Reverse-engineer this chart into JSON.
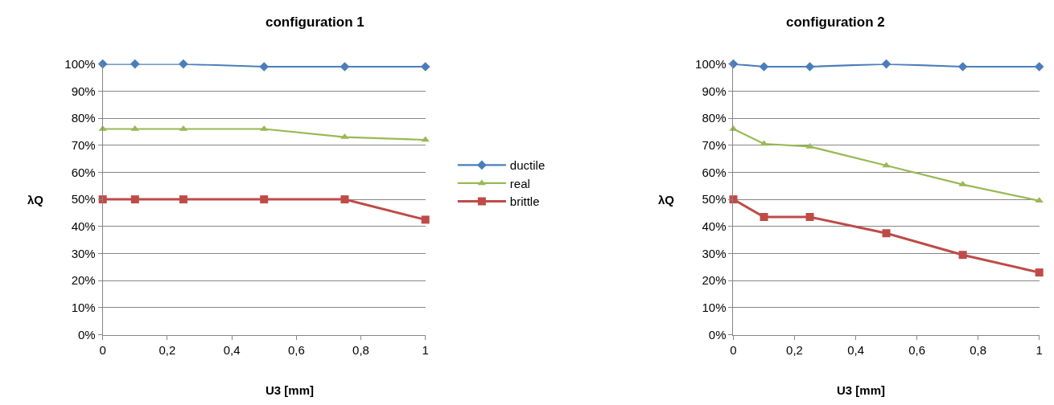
{
  "chart_data": [
    {
      "type": "line",
      "title": "configuration 1",
      "xlabel": "U3 [mm]",
      "ylabel": "λQ",
      "x": [
        0,
        0.1,
        0.25,
        0.5,
        0.75,
        1
      ],
      "series": [
        {
          "name": "ductile",
          "color": "#4a7ebb",
          "marker": "diamond",
          "values": [
            100,
            100,
            100,
            99,
            99,
            99
          ]
        },
        {
          "name": "real",
          "color": "#98b954",
          "marker": "triangle",
          "values": [
            76,
            76,
            76,
            76,
            73,
            72
          ]
        },
        {
          "name": "brittle",
          "color": "#be4b48",
          "marker": "square",
          "values": [
            50,
            50,
            50,
            50,
            50,
            42.5
          ]
        }
      ],
      "xlim": [
        0,
        1
      ],
      "xticks": [
        0,
        {
          "value": 0.2,
          "label": "0,2"
        },
        {
          "value": 0.4,
          "label": "0,4"
        },
        {
          "value": 0.6,
          "label": "0,6"
        },
        {
          "value": 0.8,
          "label": "0,8"
        },
        1
      ],
      "ylim": [
        0,
        100
      ],
      "yticks": [
        {
          "value": 0,
          "label": "0%"
        },
        {
          "value": 10,
          "label": "10%"
        },
        {
          "value": 20,
          "label": "20%"
        },
        {
          "value": 30,
          "label": "30%"
        },
        {
          "value": 40,
          "label": "40%"
        },
        {
          "value": 50,
          "label": "50%"
        },
        {
          "value": 60,
          "label": "60%"
        },
        {
          "value": 70,
          "label": "70%"
        },
        {
          "value": 80,
          "label": "80%"
        },
        {
          "value": 90,
          "label": "90%"
        },
        {
          "value": 100,
          "label": "100%"
        }
      ],
      "grid": "y",
      "legend": "right"
    },
    {
      "type": "line",
      "title": "configuration 2",
      "xlabel": "U3 [mm]",
      "ylabel": "λQ",
      "x": [
        0,
        0.1,
        0.25,
        0.5,
        0.75,
        1
      ],
      "series": [
        {
          "color": "#4a7ebb",
          "marker": "diamond",
          "values": [
            100,
            99,
            99,
            100,
            99,
            99
          ]
        },
        {
          "color": "#98b954",
          "marker": "triangle",
          "values": [
            76,
            70.5,
            69.5,
            62.5,
            55.5,
            49.5
          ]
        },
        {
          "color": "#be4b48",
          "marker": "square",
          "values": [
            50,
            43.5,
            43.5,
            37.5,
            29.5,
            23
          ]
        }
      ],
      "xlim": [
        0,
        1
      ],
      "xticks": [
        0,
        {
          "value": 0.2,
          "label": "0,2"
        },
        {
          "value": 0.4,
          "label": "0,4"
        },
        {
          "value": 0.6,
          "label": "0,6"
        },
        {
          "value": 0.8,
          "label": "0,8"
        },
        1
      ],
      "ylim": [
        0,
        100
      ],
      "yticks": [
        {
          "value": 0,
          "label": "0%"
        },
        {
          "value": 10,
          "label": "10%"
        },
        {
          "value": 20,
          "label": "20%"
        },
        {
          "value": 30,
          "label": "30%"
        },
        {
          "value": 40,
          "label": "40%"
        },
        {
          "value": 50,
          "label": "50%"
        },
        {
          "value": 60,
          "label": "60%"
        },
        {
          "value": 70,
          "label": "70%"
        },
        {
          "value": 80,
          "label": "80%"
        },
        {
          "value": 90,
          "label": "90%"
        },
        {
          "value": 100,
          "label": "100%"
        }
      ],
      "grid": "y"
    }
  ]
}
